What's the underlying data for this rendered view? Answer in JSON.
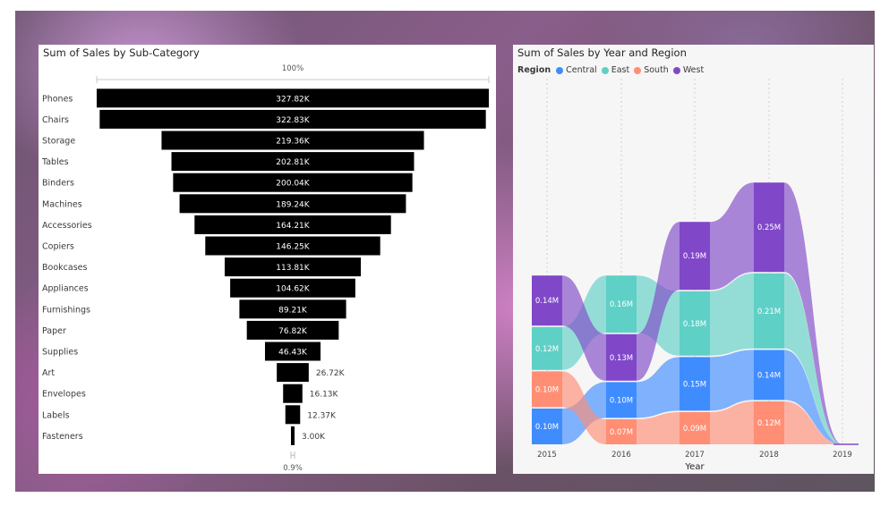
{
  "funnel": {
    "title": "Sum of Sales by Sub-Category",
    "top_pct": "100%",
    "bottom_pct": "0.9%",
    "bar_color": "#000000",
    "chart_data": {
      "type": "funnel",
      "categories": [
        "Phones",
        "Chairs",
        "Storage",
        "Tables",
        "Binders",
        "Machines",
        "Accessories",
        "Copiers",
        "Bookcases",
        "Appliances",
        "Furnishings",
        "Paper",
        "Supplies",
        "Art",
        "Envelopes",
        "Labels",
        "Fasteners"
      ],
      "values": [
        327820,
        322830,
        219360,
        202810,
        200040,
        189240,
        164210,
        146250,
        113810,
        104620,
        89210,
        76820,
        46430,
        26720,
        16130,
        12370,
        3000
      ],
      "labels": [
        "327.82K",
        "322.83K",
        "219.36K",
        "202.81K",
        "200.04K",
        "189.24K",
        "164.21K",
        "146.25K",
        "113.81K",
        "104.62K",
        "89.21K",
        "76.82K",
        "46.43K",
        "26.72K",
        "16.13K",
        "12.37K",
        "3.00K"
      ]
    }
  },
  "ribbon": {
    "title": "Sum of Sales by Year and Region",
    "legend_title": "Region",
    "xlabel": "Year",
    "chart_data": {
      "type": "ribbon",
      "x": [
        "2015",
        "2016",
        "2017",
        "2018",
        "2019"
      ],
      "series": [
        {
          "name": "Central",
          "color": "#3f8cff",
          "values": [
            0.1,
            0.1,
            0.15,
            0.14,
            0
          ],
          "labels": [
            "0.10M",
            "0.10M",
            "0.15M",
            "0.14M",
            ""
          ]
        },
        {
          "name": "East",
          "color": "#5fd0c6",
          "values": [
            0.12,
            0.16,
            0.18,
            0.21,
            0
          ],
          "labels": [
            "0.12M",
            "0.16M",
            "0.18M",
            "0.21M",
            ""
          ]
        },
        {
          "name": "South",
          "color": "#ff8e74",
          "values": [
            0.1,
            0.07,
            0.09,
            0.12,
            0
          ],
          "labels": [
            "0.10M",
            "0.07M",
            "0.09M",
            "0.12M",
            ""
          ]
        },
        {
          "name": "West",
          "color": "#8048c8",
          "values": [
            0.14,
            0.13,
            0.19,
            0.25,
            0
          ],
          "labels": [
            "0.14M",
            "0.13M",
            "0.19M",
            "0.25M",
            ""
          ]
        }
      ]
    }
  }
}
